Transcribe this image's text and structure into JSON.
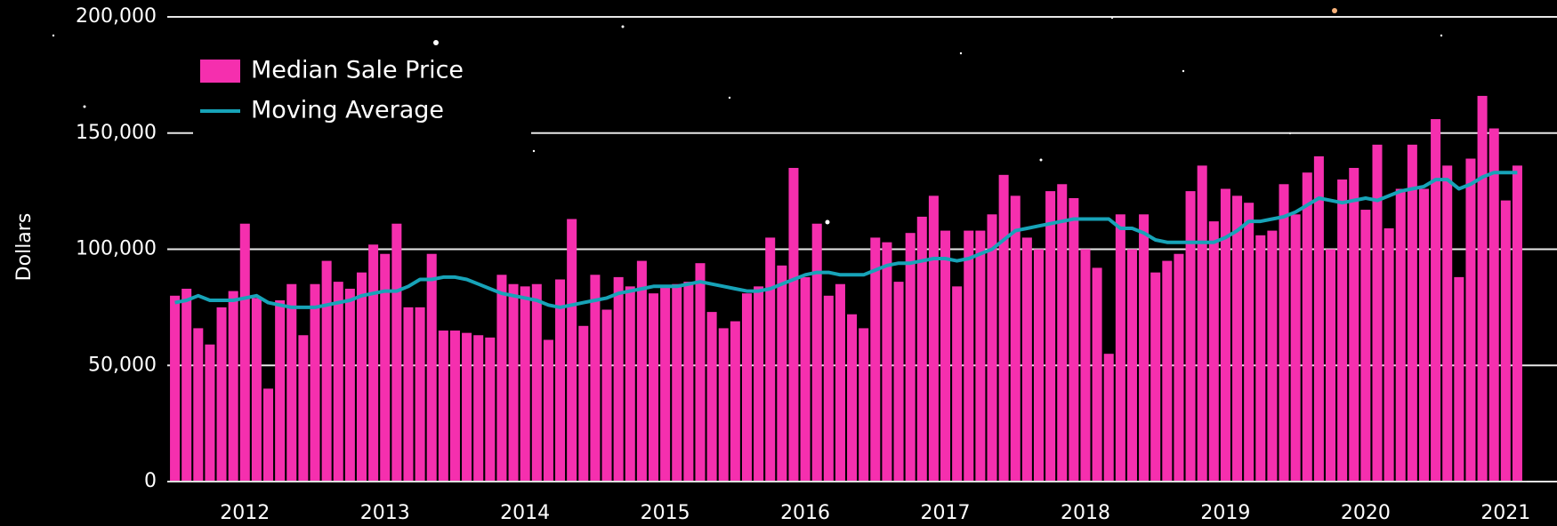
{
  "chart_data": {
    "type": "bar",
    "y_label": "Dollars",
    "categories": [
      null,
      null,
      null,
      null,
      null,
      null,
      "2012",
      null,
      null,
      null,
      null,
      null,
      null,
      null,
      null,
      null,
      null,
      null,
      "2013",
      null,
      null,
      null,
      null,
      null,
      null,
      null,
      null,
      null,
      null,
      null,
      "2014",
      null,
      null,
      null,
      null,
      null,
      null,
      null,
      null,
      null,
      null,
      null,
      "2015",
      null,
      null,
      null,
      null,
      null,
      null,
      null,
      null,
      null,
      null,
      null,
      "2016",
      null,
      null,
      null,
      null,
      null,
      null,
      null,
      null,
      null,
      null,
      null,
      "2017",
      null,
      null,
      null,
      null,
      null,
      null,
      null,
      null,
      null,
      null,
      null,
      "2018",
      null,
      null,
      null,
      null,
      null,
      null,
      null,
      null,
      null,
      null,
      null,
      "2019",
      null,
      null,
      null,
      null,
      null,
      null,
      null,
      null,
      null,
      null,
      null,
      "2020",
      null,
      null,
      null,
      null,
      null,
      null,
      null,
      null,
      null,
      null,
      null,
      "2021",
      null
    ],
    "series": [
      {
        "name": "Median Sale Price",
        "type": "bar",
        "color": "#f52fae",
        "values": [
          80000,
          83000,
          66000,
          59000,
          75000,
          82000,
          111000,
          79000,
          40000,
          78000,
          85000,
          63000,
          85000,
          95000,
          86000,
          83000,
          90000,
          102000,
          98000,
          111000,
          75000,
          75000,
          98000,
          65000,
          65000,
          64000,
          63000,
          62000,
          89000,
          85000,
          84000,
          85000,
          61000,
          87000,
          113000,
          67000,
          89000,
          74000,
          88000,
          84000,
          95000,
          81000,
          84000,
          85000,
          86000,
          94000,
          73000,
          66000,
          69000,
          81000,
          84000,
          105000,
          93000,
          135000,
          88000,
          111000,
          80000,
          85000,
          72000,
          66000,
          105000,
          103000,
          86000,
          107000,
          114000,
          123000,
          108000,
          84000,
          108000,
          108000,
          115000,
          132000,
          123000,
          105000,
          100000,
          125000,
          128000,
          122000,
          100000,
          92000,
          55000,
          115000,
          100000,
          115000,
          90000,
          95000,
          98000,
          125000,
          136000,
          112000,
          126000,
          123000,
          120000,
          106000,
          108000,
          128000,
          115000,
          133000,
          140000,
          100000,
          130000,
          135000,
          117000,
          145000,
          109000,
          126000,
          145000,
          126000,
          156000,
          136000,
          88000,
          139000,
          166000,
          152000,
          121000,
          136000
        ]
      },
      {
        "name": "Moving Average",
        "type": "line",
        "color": "#17a3b8",
        "values": [
          77000,
          78000,
          80000,
          78000,
          78000,
          78000,
          79000,
          80000,
          77000,
          76000,
          75000,
          75000,
          75000,
          76000,
          77000,
          78000,
          80000,
          81000,
          82000,
          82000,
          84000,
          87000,
          87000,
          88000,
          88000,
          87000,
          85000,
          83000,
          81000,
          80000,
          79000,
          78000,
          76000,
          75000,
          76000,
          77000,
          78000,
          79000,
          81000,
          82000,
          83000,
          84000,
          84000,
          84000,
          85000,
          86000,
          85000,
          84000,
          83000,
          82000,
          82000,
          83000,
          85000,
          87000,
          89000,
          90000,
          90000,
          89000,
          89000,
          89000,
          91000,
          93000,
          94000,
          94000,
          95000,
          96000,
          96000,
          95000,
          96000,
          98000,
          100000,
          104000,
          108000,
          109000,
          110000,
          111000,
          112000,
          113000,
          113000,
          113000,
          113000,
          109000,
          109000,
          107000,
          104000,
          103000,
          103000,
          103000,
          103000,
          103000,
          105000,
          108000,
          112000,
          112000,
          113000,
          114000,
          116000,
          119000,
          122000,
          121000,
          120000,
          121000,
          122000,
          121000,
          123000,
          125000,
          126000,
          127000,
          130000,
          130000,
          126000,
          128000,
          131000,
          133000,
          133000,
          133000
        ]
      }
    ],
    "ylim": [
      0,
      200000
    ],
    "yticks": [
      {
        "value": 0,
        "label": "0"
      },
      {
        "value": 50000,
        "label": "50,000"
      },
      {
        "value": 100000,
        "label": "100,000"
      },
      {
        "value": 150000,
        "label": "150,000"
      },
      {
        "value": 200000,
        "label": "200,000"
      }
    ],
    "grid": true,
    "legend": "upper left"
  }
}
